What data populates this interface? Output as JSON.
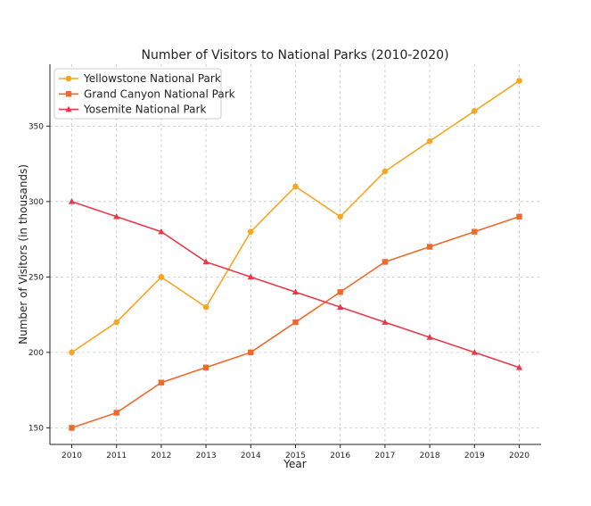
{
  "chart_data": {
    "type": "line",
    "title": "Number of Visitors to National Parks (2010-2020)",
    "xlabel": "Year",
    "ylabel": "Number of Visitors (in thousands)",
    "x": [
      "2010",
      "2011",
      "2012",
      "2013",
      "2014",
      "2015",
      "2016",
      "2017",
      "2018",
      "2019",
      "2020"
    ],
    "yticks": [
      "150",
      "200",
      "250",
      "300",
      "350"
    ],
    "ylim": [
      139,
      391
    ],
    "grid": true,
    "legend_position": "top-left",
    "series": [
      {
        "name": "Yellowstone National Park",
        "color": "#f5a623",
        "marker": "circle",
        "values": [
          200,
          220,
          250,
          230,
          280,
          310,
          290,
          320,
          340,
          360,
          380
        ]
      },
      {
        "name": "Grand Canyon National Park",
        "color": "#ee6a2c",
        "marker": "square",
        "values": [
          150,
          160,
          180,
          190,
          200,
          220,
          240,
          260,
          270,
          280,
          290
        ]
      },
      {
        "name": "Yosemite National Park",
        "color": "#e8394b",
        "marker": "triangle",
        "values": [
          300,
          290,
          280,
          260,
          250,
          240,
          230,
          220,
          210,
          200,
          190
        ]
      }
    ]
  }
}
